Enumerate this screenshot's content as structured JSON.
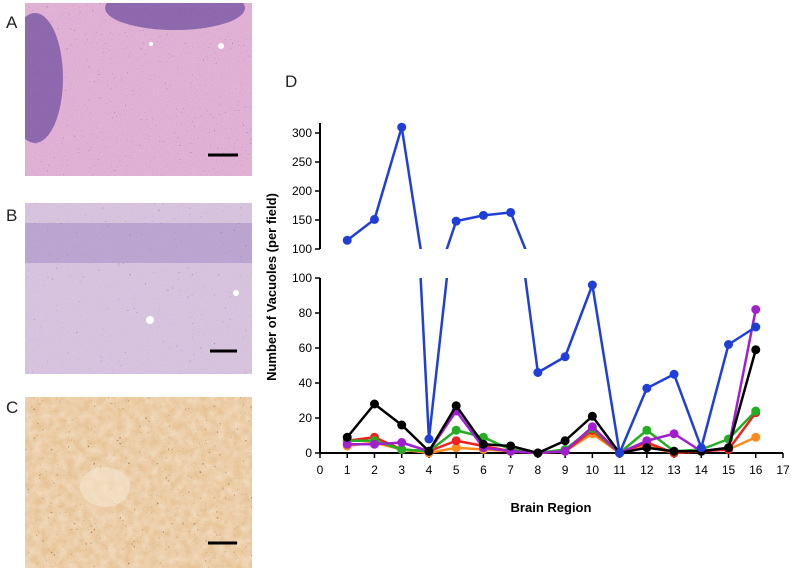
{
  "panels": {
    "a_label": "A",
    "b_label": "B",
    "c_label": "C",
    "d_label": "D"
  },
  "chart_data": {
    "type": "line",
    "title": "",
    "xlabel": "Brain Region",
    "ylabel": "Number of Vacuoles (per field)",
    "xlim": [
      0,
      17
    ],
    "x_ticks": [
      0,
      1,
      2,
      3,
      4,
      5,
      6,
      7,
      8,
      9,
      10,
      11,
      12,
      13,
      14,
      15,
      16,
      17
    ],
    "y_axis_break": {
      "lower": {
        "range": [
          0,
          100
        ],
        "ticks": [
          0,
          20,
          40,
          60,
          80,
          100
        ]
      },
      "upper": {
        "range": [
          100,
          300
        ],
        "ticks": [
          100,
          150,
          200,
          250,
          300
        ]
      }
    },
    "grid": false,
    "legend": "none",
    "series": [
      {
        "color": "#1f3fd8",
        "x": [
          1,
          2,
          3,
          4,
          5,
          6,
          7,
          8,
          9,
          10,
          11,
          12,
          13,
          14,
          15,
          16
        ],
        "values": [
          115,
          151,
          310,
          8,
          148,
          158,
          163,
          46,
          55,
          96,
          0,
          37,
          45,
          3,
          62,
          72
        ]
      },
      {
        "color": "#000000",
        "x": [
          1,
          2,
          3,
          4,
          5,
          6,
          7,
          8,
          9,
          10,
          11,
          12,
          13,
          14,
          15,
          16
        ],
        "values": [
          9,
          28,
          16,
          1,
          27,
          5,
          4,
          0,
          7,
          21,
          0,
          3,
          1,
          1,
          3,
          59
        ]
      },
      {
        "color": "#a020d0",
        "x": [
          1,
          2,
          3,
          4,
          5,
          6,
          7,
          8,
          9,
          10,
          11,
          12,
          13,
          14,
          15,
          16
        ],
        "values": [
          5,
          5,
          6,
          1,
          24,
          3,
          1,
          0,
          1,
          15,
          0,
          7,
          11,
          1,
          3,
          82
        ]
      },
      {
        "color": "#22b022",
        "x": [
          1,
          2,
          3,
          4,
          5,
          6,
          7,
          8,
          9,
          10,
          11,
          12,
          13,
          14,
          15,
          16
        ],
        "values": [
          7,
          7,
          2,
          1,
          13,
          9,
          2,
          0,
          2,
          14,
          0,
          13,
          1,
          2,
          8,
          24
        ]
      },
      {
        "color": "#ee2020",
        "x": [
          1,
          2,
          3,
          4,
          5,
          6,
          7,
          8,
          9,
          10,
          11,
          12,
          13,
          14,
          15,
          16
        ],
        "values": [
          7,
          9,
          2,
          1,
          7,
          4,
          1,
          0,
          1,
          13,
          0,
          6,
          0,
          1,
          2,
          23
        ]
      },
      {
        "color": "#ff8c1a",
        "x": [
          1,
          2,
          3,
          4,
          5,
          6,
          7,
          8,
          9,
          10,
          11,
          12,
          13,
          14,
          15,
          16
        ],
        "values": [
          4,
          6,
          2,
          0,
          3,
          2,
          1,
          0,
          1,
          11,
          0,
          4,
          0,
          1,
          2,
          9
        ]
      }
    ]
  }
}
